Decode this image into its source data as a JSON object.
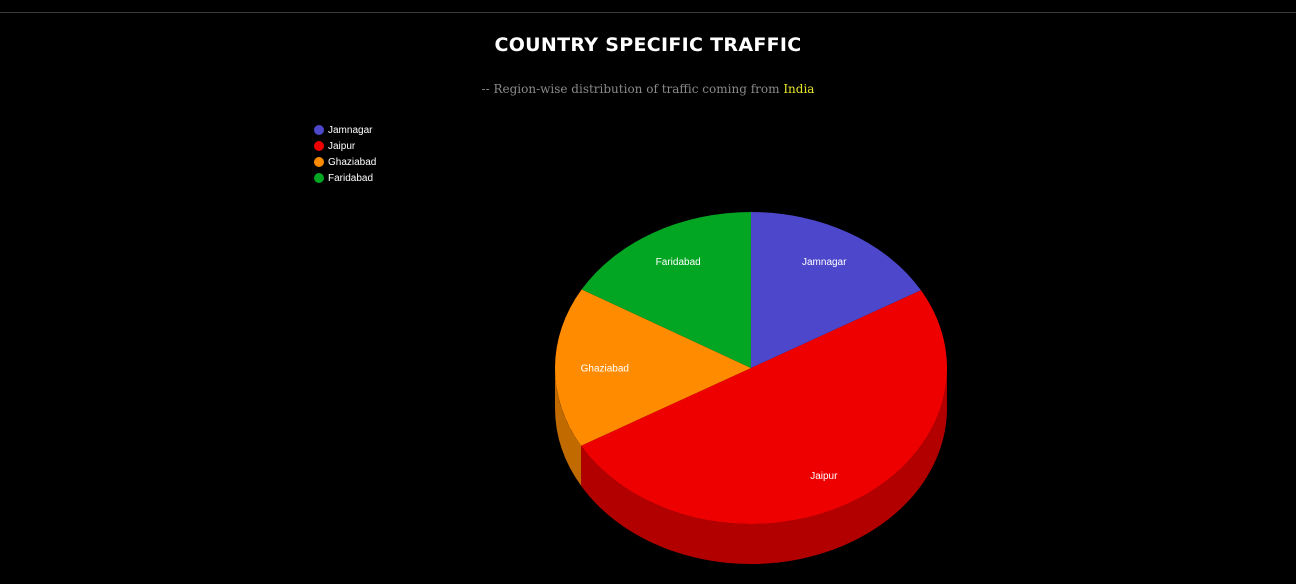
{
  "header": {
    "title": "COUNTRY SPECIFIC TRAFFIC",
    "subtitle_prefix": "-- Region-wise distribution of traffic coming from",
    "country": "India"
  },
  "colors": {
    "background": "#000000",
    "country_highlight": "#e5e52a"
  },
  "chart_data": {
    "type": "pie",
    "style": "3d",
    "legend_placement": "top-left",
    "categories": [
      "Jamnagar",
      "Jaipur",
      "Ghaziabad",
      "Faridabad"
    ],
    "values": [
      16.7,
      50,
      16.7,
      16.6
    ],
    "colors": [
      "#4d47cc",
      "#ee0000",
      "#ff8c00",
      "#03a623"
    ],
    "side_colors": [
      "#3a3599",
      "#b20000",
      "#c06a00",
      "#027a1a"
    ]
  }
}
